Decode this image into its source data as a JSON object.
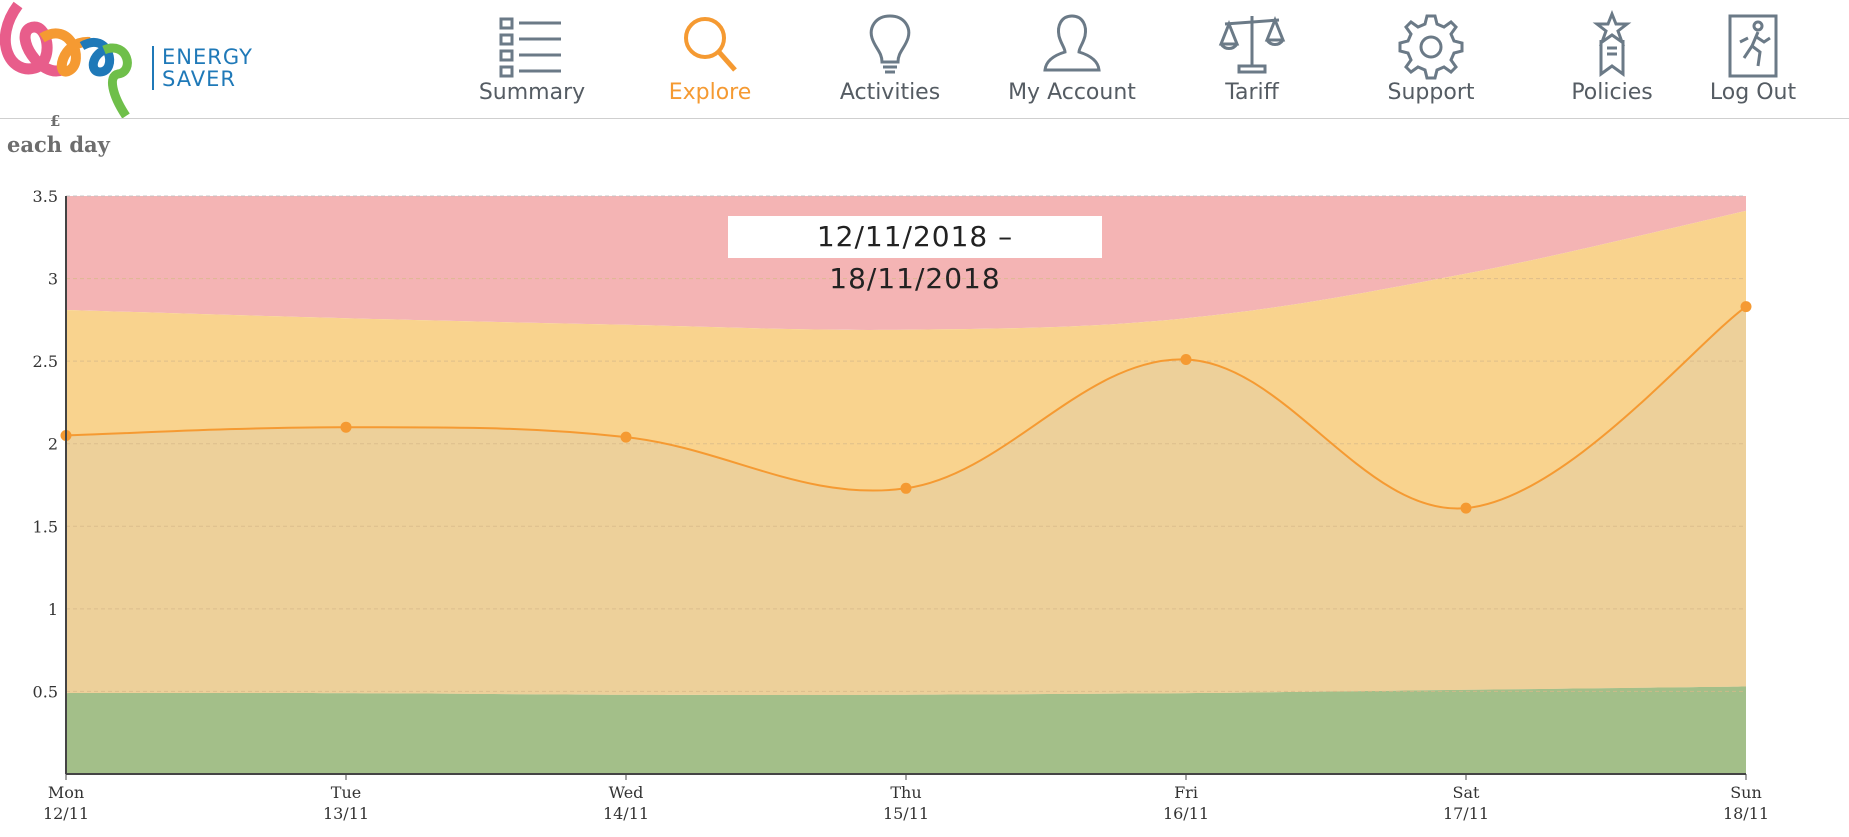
{
  "brand": {
    "line1": "ENERGY",
    "line2": "SAVER"
  },
  "nav": [
    {
      "label": "Summary",
      "icon": "list-icon",
      "active": false
    },
    {
      "label": "Explore",
      "icon": "magnifier-icon",
      "active": true
    },
    {
      "label": "Activities",
      "icon": "lightbulb-icon",
      "active": false
    },
    {
      "label": "My Account",
      "icon": "user-icon",
      "active": false
    },
    {
      "label": "Tariff",
      "icon": "scales-icon",
      "active": false
    },
    {
      "label": "Support",
      "icon": "gear-icon",
      "active": false
    },
    {
      "label": "Policies",
      "icon": "award-icon",
      "active": false
    },
    {
      "label": "Log Out",
      "icon": "exit-icon",
      "active": false
    }
  ],
  "colors": {
    "accent": "#f59a32",
    "nav_text": "#555c63",
    "brand": "#1f79b8",
    "red_band": "#f4b4b4",
    "amber_band": "#f9d38e",
    "green_band": "#a3bf89",
    "actual_area": "#edd09a",
    "line": "#f59a32"
  },
  "chart_data": {
    "type": "line",
    "title": "12/11/2018 – 18/11/2018",
    "ylabel": "each day",
    "yunit": "£",
    "ylim": [
      0,
      3.5
    ],
    "yticks": [
      "0.5",
      "1",
      "1.5",
      "2",
      "2.5",
      "3",
      "3.5"
    ],
    "categories": [
      "Mon",
      "Tue",
      "Wed",
      "Thu",
      "Fri",
      "Sat",
      "Sun"
    ],
    "dates": [
      "12/11",
      "13/11",
      "14/11",
      "15/11",
      "16/11",
      "17/11",
      "18/11"
    ],
    "series": [
      {
        "values": [
          2.05,
          2.1,
          2.04,
          1.73,
          2.51,
          1.61,
          2.83
        ]
      }
    ],
    "bands": {
      "green_upper": [
        0.49,
        0.49,
        0.48,
        0.48,
        0.49,
        0.51,
        0.53
      ],
      "amber_upper": [
        2.81,
        2.76,
        2.72,
        2.69,
        2.76,
        3.03,
        3.41
      ],
      "red_upper": [
        3.5,
        3.5,
        3.5,
        3.5,
        3.5,
        3.5,
        3.5
      ]
    },
    "grid": true,
    "legend": "none"
  }
}
